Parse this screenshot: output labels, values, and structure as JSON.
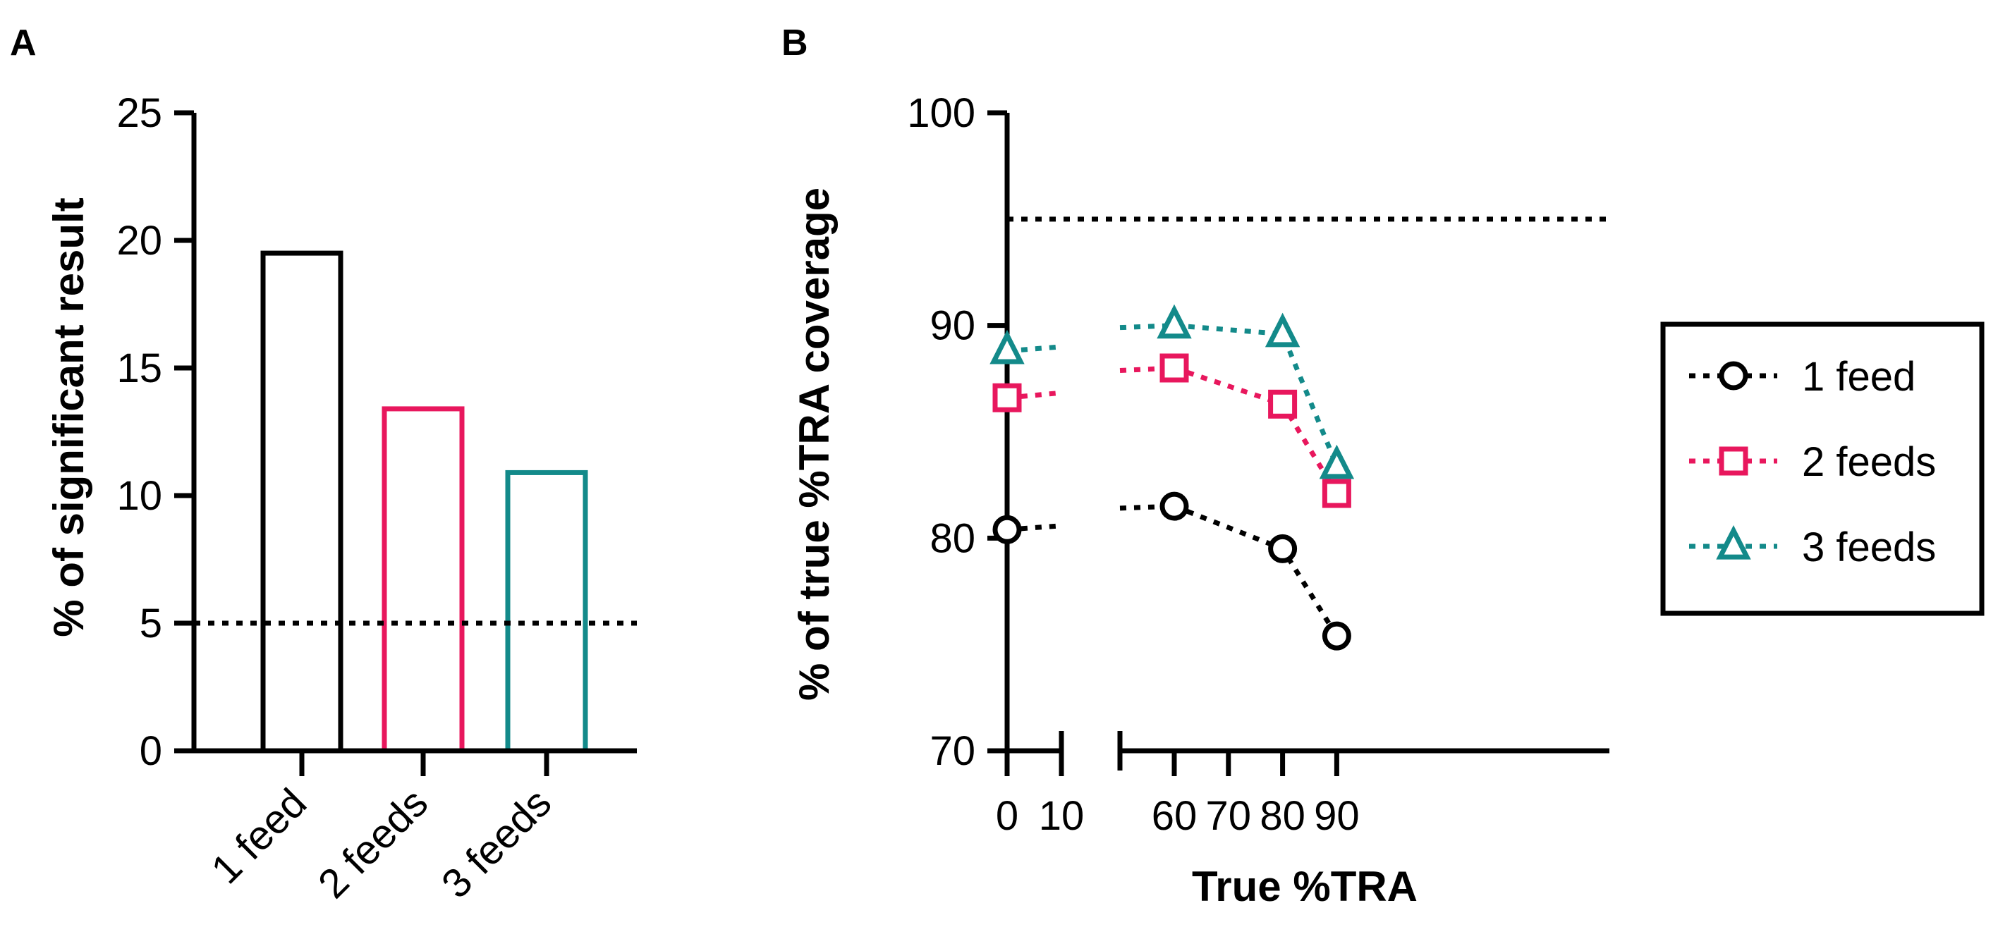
{
  "colors": {
    "one_feed": "#000000",
    "two_feeds": "#e8175d",
    "three_feeds": "#138a8a"
  },
  "chart_data": [
    {
      "panel": "A",
      "type": "bar",
      "categories": [
        "1 feed",
        "2 feeds",
        "3 feeds"
      ],
      "values": [
        19.5,
        13.4,
        10.9
      ],
      "bar_colors": [
        "#000000",
        "#e8175d",
        "#138a8a"
      ],
      "xlabel": "",
      "ylabel": "% of significant result",
      "ylim": [
        0,
        25
      ],
      "yticks": [
        0,
        5,
        10,
        15,
        20,
        25
      ],
      "reference_line": {
        "y": 5,
        "style": "dotted"
      }
    },
    {
      "panel": "B",
      "type": "line",
      "xlabel": "True %TRA",
      "ylabel": "% of true %TRA coverage",
      "ylim": [
        70,
        100
      ],
      "yticks": [
        70,
        80,
        90,
        100
      ],
      "xticks": [
        0,
        10,
        60,
        70,
        80,
        90
      ],
      "x_axis_break": [
        10,
        60
      ],
      "reference_line": {
        "y": 95,
        "style": "dotted"
      },
      "series": [
        {
          "name": "1 feed",
          "marker": "circle",
          "color": "#000000",
          "x": [
            0,
            60,
            80,
            90
          ],
          "y": [
            80.4,
            81.5,
            79.5,
            75.4
          ]
        },
        {
          "name": "2 feeds",
          "marker": "square",
          "color": "#e8175d",
          "x": [
            0,
            60,
            80,
            90
          ],
          "y": [
            86.6,
            88.0,
            86.3,
            82.1
          ]
        },
        {
          "name": "3 feeds",
          "marker": "triangle",
          "color": "#138a8a",
          "x": [
            0,
            60,
            80,
            90
          ],
          "y": [
            88.8,
            90.0,
            89.6,
            83.4
          ]
        }
      ],
      "legend_position": "right"
    }
  ]
}
